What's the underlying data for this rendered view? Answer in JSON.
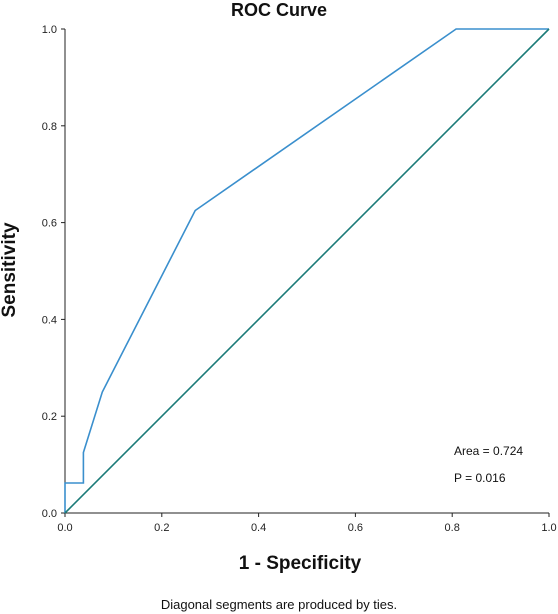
{
  "chart_data": {
    "type": "line",
    "title": "ROC Curve",
    "xlabel": "1 - Specificity",
    "ylabel": "Sensitivity",
    "xlim": [
      0,
      1
    ],
    "ylim": [
      0,
      1
    ],
    "x_ticks": [
      "0.0",
      "0.2",
      "0.4",
      "0.6",
      "0.8",
      "1.0"
    ],
    "y_ticks": [
      "0.0",
      "0.2",
      "0.4",
      "0.6",
      "0.8",
      "1.0"
    ],
    "grid": false,
    "series": [
      {
        "color": "#3a8fcd",
        "x": [
          0.0,
          0.0,
          0.038,
          0.038,
          0.077,
          0.269,
          0.808,
          1.0
        ],
        "y": [
          0.0,
          0.062,
          0.062,
          0.125,
          0.25,
          0.625,
          1.0,
          1.0
        ]
      },
      {
        "color": "#1b7b78",
        "x": [
          0.0,
          1.0
        ],
        "y": [
          0.0,
          1.0
        ]
      }
    ],
    "annotations": {
      "area": "Area = 0.724",
      "p": "P = 0.016"
    },
    "footnote": "Diagonal segments are produced by ties."
  }
}
